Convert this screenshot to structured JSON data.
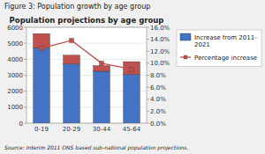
{
  "chart_data": {
    "type": "bar",
    "title": "Population projections by age group",
    "annotations": [
      "Figure 3: Population growth by age group",
      "Source: Interim 2011 ONS based sub-national population projections."
    ],
    "categories": [
      "0-19",
      "20-29",
      "30-44",
      "45-64"
    ],
    "stacked": true,
    "series": [
      {
        "name": "Increase from 2011-\n2021",
        "type": "bar",
        "color": "#4472C4",
        "values": [
          4700,
          3700,
          3250,
          3050
        ]
      },
      {
        "type": "bar",
        "color": "#C0504D",
        "values": [
          900,
          550,
          350,
          800
        ]
      },
      {
        "name": "Percentage increase",
        "type": "line",
        "axis": "y2",
        "color": "#C0504D",
        "marker": "square",
        "values": [
          12.5,
          13.8,
          10.0,
          9.0
        ]
      }
    ],
    "ylim": [
      0,
      6000
    ],
    "yticks": [
      0,
      1000,
      2000,
      3000,
      4000,
      5000,
      6000
    ],
    "y2lim": [
      0.0,
      16.0
    ],
    "y2ticks": [
      {
        "value": 0.0,
        "label": "0.0%"
      },
      {
        "value": 2.0,
        "label": "2.0%"
      },
      {
        "value": 4.0,
        "label": "4.0%"
      },
      {
        "value": 6.0,
        "label": "6.0%"
      },
      {
        "value": 8.0,
        "label": "8.0%"
      },
      {
        "value": 10.0,
        "label": "10.0%"
      },
      {
        "value": 12.0,
        "label": "12.0%"
      },
      {
        "value": 14.0,
        "label": "14.0%"
      },
      {
        "value": 16.0,
        "label": "16.0%"
      }
    ],
    "grid": true,
    "legend": "right"
  }
}
